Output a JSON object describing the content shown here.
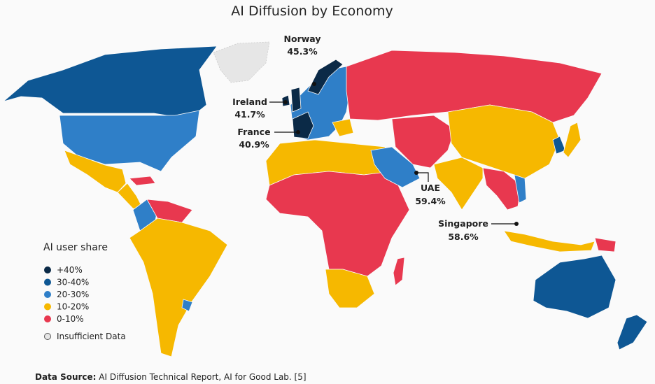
{
  "title": "AI Diffusion by Economy",
  "legend": {
    "title": "AI user share",
    "items": [
      {
        "label": "+40%",
        "color": "#0b2a47"
      },
      {
        "label": "30-40%",
        "color": "#0e5794"
      },
      {
        "label": "20-30%",
        "color": "#2f7fc8"
      },
      {
        "label": "10-20%",
        "color": "#f6b800"
      },
      {
        "label": "0-10%",
        "color": "#e8384f"
      },
      {
        "label": "Insufficient Data",
        "color": "#e6e6e6"
      }
    ]
  },
  "callouts": [
    {
      "name": "Norway",
      "value": 45.3,
      "value_label": "45.3%"
    },
    {
      "name": "Ireland",
      "value": 41.7,
      "value_label": "41.7%"
    },
    {
      "name": "France",
      "value": 40.9,
      "value_label": "40.9%"
    },
    {
      "name": "UAE",
      "value": 59.4,
      "value_label": "59.4%"
    },
    {
      "name": "Singapore",
      "value": 58.6,
      "value_label": "58.6%"
    }
  ],
  "source": {
    "prefix": "Data Source:",
    "text": "AI Diffusion Technical Report, AI for Good Lab. [5]"
  }
}
